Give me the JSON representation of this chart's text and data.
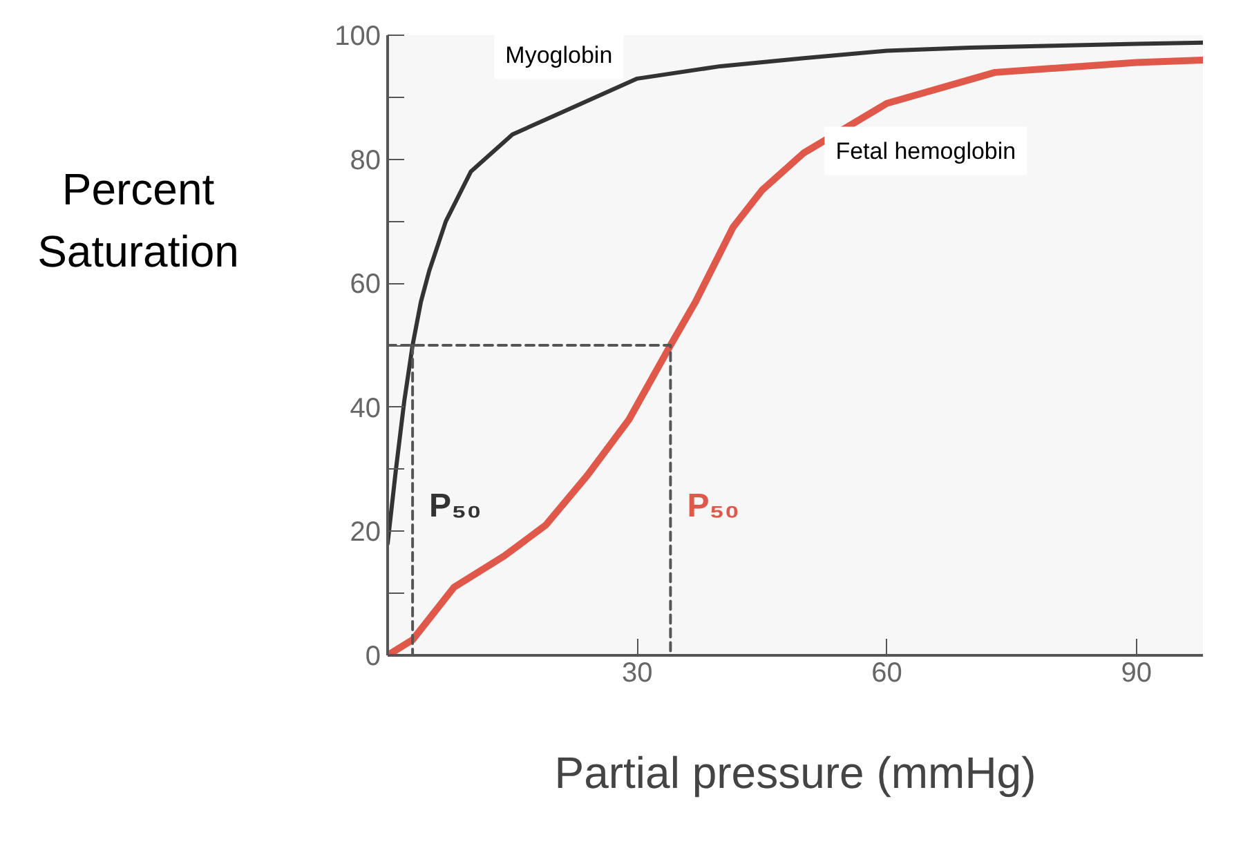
{
  "chart_data": {
    "type": "line",
    "xlabel": "Partial pressure (mmHg)",
    "ylabel": "Percent\nSaturation",
    "xlim": [
      0,
      98
    ],
    "ylim": [
      0,
      100
    ],
    "xticks": [
      30,
      60,
      90
    ],
    "yticks": [
      0,
      {
        "value": 10,
        "label": null
      },
      20,
      {
        "value": 30,
        "label": null
      },
      40,
      {
        "value": 50,
        "label": null
      },
      60,
      {
        "value": 70,
        "label": null
      },
      80,
      {
        "value": 90,
        "label": null
      },
      100
    ],
    "grid": false,
    "marker": "none",
    "series": [
      {
        "name": "Myoglobin",
        "color": "#333333",
        "x": [
          0,
          1,
          2,
          3,
          4,
          5,
          7,
          10,
          15,
          20,
          30,
          40,
          50,
          60,
          70,
          80,
          90,
          98
        ],
        "values": [
          18,
          30,
          41,
          50,
          57,
          62,
          70,
          78,
          84,
          87,
          93,
          95,
          96.3,
          97.5,
          98,
          98.3,
          98.6,
          98.8
        ]
      },
      {
        "name": "Fetal hemoglobin",
        "color": "#e0584a",
        "x": [
          0,
          3,
          8,
          14,
          19,
          24,
          29,
          34,
          37,
          41.5,
          45,
          50,
          60,
          73,
          90,
          98
        ],
        "values": [
          0,
          2.5,
          11,
          16,
          21,
          29,
          38,
          50,
          57,
          69,
          75,
          81,
          89,
          94,
          95.6,
          96
        ]
      },
      {
        "color": "#555555",
        "line_style": "dashed",
        "x": [
          0,
          34,
          34
        ],
        "values": [
          50,
          50,
          0
        ]
      },
      {
        "color": "#555555",
        "line_style": "dashed",
        "x": [
          3,
          3
        ],
        "values": [
          50,
          0
        ]
      }
    ],
    "annotations": [
      "P₅₀",
      "P₅₀"
    ]
  }
}
